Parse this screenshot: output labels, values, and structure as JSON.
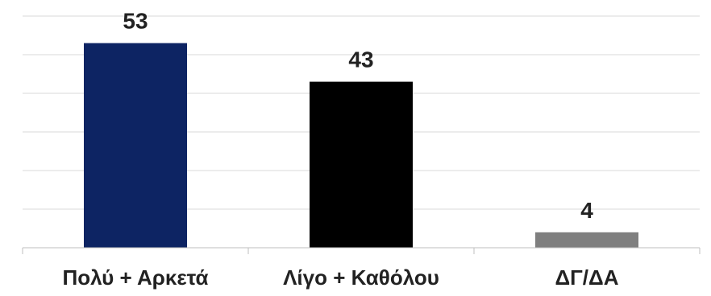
{
  "chart_data": {
    "type": "bar",
    "categories": [
      "Πολύ + Αρκετά",
      "Λίγο + Καθόλου",
      "ΔΓ/ΔΑ"
    ],
    "values": [
      53,
      43,
      4
    ],
    "bar_colors": [
      "#0d2463",
      "#000000",
      "#7f7f7f"
    ],
    "ylim": [
      0,
      60
    ],
    "grid": true,
    "title": "",
    "xlabel": "",
    "ylabel": ""
  }
}
